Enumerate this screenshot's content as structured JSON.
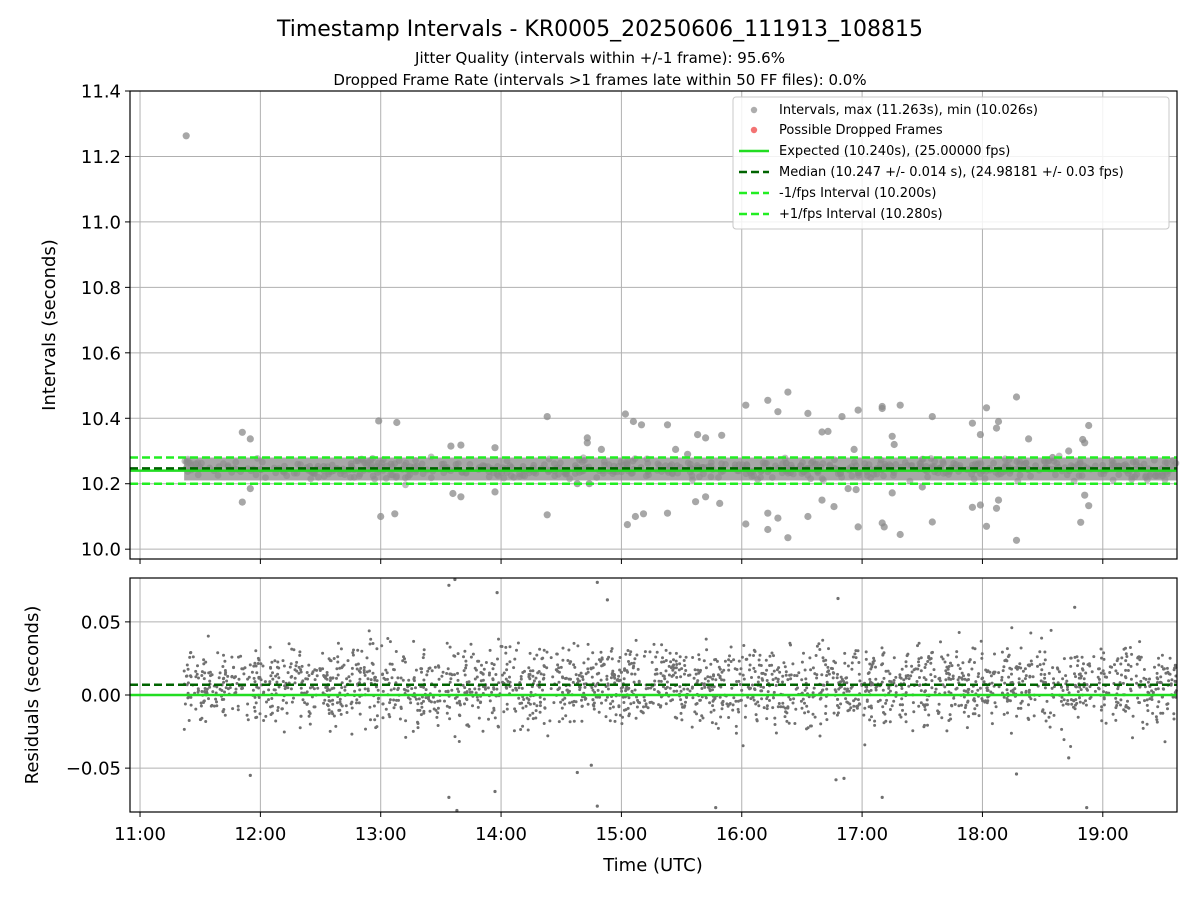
{
  "title": "Timestamp Intervals - KR0005_20250606_111913_108815",
  "subtitle_lines": [
    "Jitter Quality (intervals within +/-1 frame): 95.6%",
    "Dropped Frame Rate (intervals >1 frames late within 50 FF files): 0.0%"
  ],
  "colors": {
    "points": "#8a8a8a",
    "dropped": "#f05050",
    "expected": "#22dd22",
    "median": "#006400",
    "limits": "#22ee22",
    "grid": "#b0b0b0"
  },
  "chart_data": [
    {
      "type": "scatter",
      "panel": "top",
      "ylabel": "Intervals (seconds)",
      "xlim": [
        "10:55",
        "19:37"
      ],
      "ylim": [
        9.97,
        11.4
      ],
      "yticks": [
        "10.0",
        "10.2",
        "10.4",
        "10.6",
        "10.8",
        "11.0",
        "11.2",
        "11.4"
      ],
      "grid": true,
      "legend_placement": "top-right",
      "legend": [
        "Intervals, max (11.263s), min (10.026s)",
        "Possible Dropped Frames",
        "Expected (10.240s), (25.00000 fps)",
        "Median (10.247 +/- 0.014 s), (24.98181 +/- 0.03 fps)",
        "-1/fps Interval (10.200s)",
        "+1/fps Interval (10.280s)"
      ],
      "reference_lines": {
        "expected": 10.24,
        "median": 10.247,
        "minus_1fps": 10.2,
        "plus_1fps": 10.28
      },
      "band": {
        "from": "11:22",
        "to": "19:37",
        "center": 10.245,
        "spread": 0.035
      },
      "outliers": [
        [
          "11:23",
          11.263
        ],
        [
          "11:51",
          10.357
        ],
        [
          "11:55",
          10.337
        ],
        [
          "11:51",
          10.144
        ],
        [
          "11:55",
          10.185
        ],
        [
          "12:59",
          10.392
        ],
        [
          "13:08",
          10.387
        ],
        [
          "13:00",
          10.1
        ],
        [
          "13:07",
          10.108
        ],
        [
          "13:35",
          10.315
        ],
        [
          "13:40",
          10.318
        ],
        [
          "13:36",
          10.17
        ],
        [
          "13:40",
          10.16
        ],
        [
          "13:57",
          10.31
        ],
        [
          "13:57",
          10.175
        ],
        [
          "14:23",
          10.405
        ],
        [
          "14:23",
          10.105
        ],
        [
          "14:43",
          10.325
        ],
        [
          "14:43",
          10.34
        ],
        [
          "14:50",
          10.305
        ],
        [
          "14:38",
          10.2
        ],
        [
          "14:44",
          10.2
        ],
        [
          "15:02",
          10.413
        ],
        [
          "15:06",
          10.39
        ],
        [
          "15:10",
          10.38
        ],
        [
          "15:03",
          10.075
        ],
        [
          "15:07",
          10.1
        ],
        [
          "15:11",
          10.108
        ],
        [
          "15:23",
          10.38
        ],
        [
          "15:23",
          10.11
        ],
        [
          "15:27",
          10.305
        ],
        [
          "15:33",
          10.29
        ],
        [
          "15:38",
          10.35
        ],
        [
          "15:42",
          10.34
        ],
        [
          "15:50",
          10.348
        ],
        [
          "15:37",
          10.145
        ],
        [
          "15:42",
          10.16
        ],
        [
          "15:49",
          10.14
        ],
        [
          "16:02",
          10.44
        ],
        [
          "16:02",
          10.077
        ],
        [
          "16:13",
          10.455
        ],
        [
          "16:18",
          10.42
        ],
        [
          "16:23",
          10.48
        ],
        [
          "16:13",
          10.11
        ],
        [
          "16:18",
          10.095
        ],
        [
          "16:23",
          10.035
        ],
        [
          "16:13",
          10.06
        ],
        [
          "16:33",
          10.415
        ],
        [
          "16:43",
          10.36
        ],
        [
          "16:40",
          10.358
        ],
        [
          "16:33",
          10.1
        ],
        [
          "16:40",
          10.15
        ],
        [
          "16:46",
          10.13
        ],
        [
          "16:50",
          10.405
        ],
        [
          "16:53",
          10.185
        ],
        [
          "16:56",
          10.305
        ],
        [
          "16:57",
          10.182
        ],
        [
          "16:58",
          10.425
        ],
        [
          "16:58",
          10.068
        ],
        [
          "17:10",
          10.43
        ],
        [
          "17:10",
          10.436
        ],
        [
          "17:10",
          10.08
        ],
        [
          "17:11",
          10.068
        ],
        [
          "17:15",
          10.345
        ],
        [
          "17:16",
          10.32
        ],
        [
          "17:15",
          10.172
        ],
        [
          "17:19",
          10.44
        ],
        [
          "17:19",
          10.045
        ],
        [
          "17:35",
          10.405
        ],
        [
          "17:35",
          10.083
        ],
        [
          "17:30",
          10.19
        ],
        [
          "17:55",
          10.385
        ],
        [
          "17:55",
          10.128
        ],
        [
          "17:59",
          10.35
        ],
        [
          "17:59",
          10.135
        ],
        [
          "18:02",
          10.432
        ],
        [
          "18:02",
          10.07
        ],
        [
          "18:07",
          10.37
        ],
        [
          "18:08",
          10.39
        ],
        [
          "18:08",
          10.15
        ],
        [
          "18:07",
          10.125
        ],
        [
          "18:17",
          10.465
        ],
        [
          "18:17",
          10.027
        ],
        [
          "18:23",
          10.337
        ],
        [
          "18:35",
          10.28
        ],
        [
          "18:43",
          10.3
        ],
        [
          "18:50",
          10.335
        ],
        [
          "18:51",
          10.325
        ],
        [
          "18:53",
          10.378
        ],
        [
          "18:53",
          10.133
        ],
        [
          "18:51",
          10.165
        ],
        [
          "18:49",
          10.082
        ]
      ]
    },
    {
      "type": "scatter",
      "panel": "bottom",
      "xlabel": "Time (UTC)",
      "ylabel": "Residuals (seconds)",
      "xlim": [
        "10:55",
        "19:37"
      ],
      "ylim": [
        -0.08,
        0.08
      ],
      "xticks": [
        "11:00",
        "12:00",
        "13:00",
        "14:00",
        "15:00",
        "16:00",
        "17:00",
        "18:00",
        "19:00"
      ],
      "yticks": [
        "−0.05",
        "0.00",
        "0.05"
      ],
      "grid": true,
      "reference_lines": {
        "zero": 0.0,
        "median_offset": 0.007
      },
      "cloud": {
        "from": "11:22",
        "to": "19:37",
        "center": 0.006,
        "spread": 0.022
      },
      "outliers": [
        [
          "13:34",
          0.075
        ],
        [
          "13:37",
          0.079
        ],
        [
          "13:58",
          0.07
        ],
        [
          "14:48",
          0.077
        ],
        [
          "14:53",
          0.065
        ],
        [
          "16:48",
          0.066
        ],
        [
          "18:46",
          0.06
        ],
        [
          "11:55",
          -0.055
        ],
        [
          "13:34",
          -0.07
        ],
        [
          "13:57",
          -0.066
        ],
        [
          "13:38",
          -0.079
        ],
        [
          "14:38",
          -0.053
        ],
        [
          "14:48",
          -0.076
        ],
        [
          "14:45",
          -0.048
        ],
        [
          "15:47",
          -0.077
        ],
        [
          "16:47",
          -0.058
        ],
        [
          "16:51",
          -0.057
        ],
        [
          "17:10",
          -0.07
        ],
        [
          "18:17",
          -0.054
        ],
        [
          "18:43",
          -0.043
        ],
        [
          "18:52",
          -0.077
        ]
      ]
    }
  ]
}
